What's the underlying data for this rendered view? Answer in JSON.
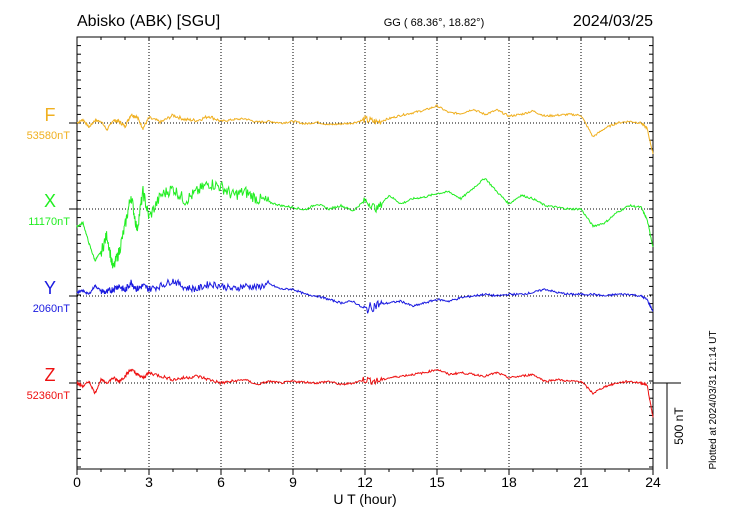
{
  "header": {
    "station": "Abisko (ABK)  [SGU]",
    "coords": "GG ( 68.36°,  18.82°)",
    "date": "2024/03/25"
  },
  "footer": {
    "plotted": "Plotted at 2024/03/31 21:14 UT"
  },
  "chart_data": {
    "type": "line",
    "title": "Abisko (ABK)  [SGU]",
    "xlabel": "U T (hour)",
    "ylabel": "",
    "xlim": [
      0,
      24
    ],
    "x_ticks": [
      0,
      3,
      6,
      9,
      12,
      15,
      18,
      21,
      24
    ],
    "x_tick_labels": [
      "0",
      "3",
      "6",
      "9",
      "12",
      "15",
      "18",
      "21",
      "24"
    ],
    "grid": "dotted vertical lines every 3 hours, dotted baseline per component",
    "scale_bar": {
      "label": "500 nT",
      "value_nT": 500
    },
    "series": [
      {
        "name": "F",
        "baseline_label": "53580nT",
        "baseline_nT": 53580,
        "color": "#f0b020",
        "x": [
          0,
          0.25,
          0.5,
          0.75,
          1,
          1.25,
          1.5,
          1.75,
          2,
          2.25,
          2.5,
          2.75,
          3,
          3.5,
          4,
          4.5,
          5,
          5.5,
          6,
          6.5,
          7,
          7.5,
          8,
          8.5,
          9,
          9.5,
          10,
          10.5,
          11,
          11.5,
          12,
          12.5,
          13,
          13.5,
          14,
          14.5,
          15,
          15.5,
          16,
          16.5,
          17,
          17.5,
          18,
          18.5,
          19,
          19.5,
          20,
          20.5,
          21,
          21.5,
          22,
          22.5,
          23,
          23.5,
          23.75,
          24
        ],
        "values": [
          0,
          20,
          -25,
          15,
          10,
          -40,
          15,
          10,
          -20,
          50,
          35,
          -30,
          30,
          5,
          45,
          20,
          15,
          40,
          10,
          20,
          25,
          5,
          10,
          0,
          10,
          -5,
          5,
          -10,
          -5,
          0,
          20,
          5,
          25,
          45,
          60,
          75,
          100,
          60,
          55,
          80,
          50,
          75,
          40,
          50,
          70,
          40,
          45,
          50,
          45,
          -80,
          -30,
          0,
          10,
          0,
          -30,
          -180
        ]
      },
      {
        "name": "X",
        "baseline_label": "11170nT",
        "baseline_nT": 11170,
        "color": "#22ee22",
        "x": [
          0,
          0.25,
          0.5,
          0.75,
          1,
          1.25,
          1.5,
          1.75,
          2,
          2.25,
          2.5,
          2.75,
          3,
          3.5,
          4,
          4.5,
          5,
          5.5,
          6,
          6.5,
          7,
          7.5,
          8,
          8.5,
          9,
          9.5,
          10,
          10.5,
          11,
          11.5,
          12,
          12.5,
          13,
          13.5,
          14,
          14.5,
          15,
          15.5,
          16,
          16.5,
          17,
          17.5,
          18,
          18.5,
          19,
          19.5,
          20,
          20.5,
          21,
          21.5,
          22,
          22.5,
          23,
          23.5,
          23.75,
          24
        ],
        "values": [
          -100,
          -80,
          -200,
          -300,
          -250,
          -150,
          -350,
          -250,
          -100,
          80,
          -120,
          100,
          -50,
          80,
          120,
          50,
          100,
          150,
          130,
          80,
          100,
          60,
          40,
          20,
          10,
          -5,
          30,
          0,
          20,
          -10,
          50,
          0,
          80,
          30,
          60,
          70,
          90,
          100,
          60,
          120,
          180,
          100,
          30,
          80,
          60,
          20,
          10,
          0,
          0,
          -100,
          -80,
          -20,
          20,
          10,
          -60,
          -220
        ]
      },
      {
        "name": "Y",
        "baseline_label": "2060nT",
        "baseline_nT": 2060,
        "color": "#1a1ae0",
        "x": [
          0,
          0.25,
          0.5,
          0.75,
          1,
          1.25,
          1.5,
          1.75,
          2,
          2.25,
          2.5,
          2.75,
          3,
          3.5,
          4,
          4.5,
          5,
          5.5,
          6,
          6.5,
          7,
          7.5,
          8,
          8.5,
          9,
          9.5,
          10,
          10.5,
          11,
          11.5,
          12,
          12.5,
          13,
          13.5,
          14,
          14.5,
          15,
          15.5,
          16,
          16.5,
          17,
          17.5,
          18,
          18.5,
          19,
          19.5,
          20,
          20.5,
          21,
          21.5,
          22,
          22.5,
          23,
          23.5,
          23.75,
          24
        ],
        "values": [
          20,
          30,
          10,
          60,
          30,
          20,
          40,
          60,
          30,
          80,
          40,
          60,
          40,
          60,
          90,
          50,
          40,
          70,
          60,
          40,
          60,
          50,
          70,
          40,
          40,
          10,
          0,
          -20,
          -40,
          -30,
          -80,
          -50,
          -40,
          -30,
          -60,
          -40,
          -20,
          -30,
          -10,
          0,
          10,
          0,
          10,
          10,
          20,
          40,
          20,
          10,
          10,
          10,
          0,
          10,
          10,
          0,
          -20,
          -90
        ]
      },
      {
        "name": "Z",
        "baseline_label": "52360nT",
        "baseline_nT": 52360,
        "color": "#ee1111",
        "x": [
          0,
          0.25,
          0.5,
          0.75,
          1,
          1.25,
          1.5,
          1.75,
          2,
          2.25,
          2.5,
          2.75,
          3,
          3.5,
          4,
          4.5,
          5,
          5.5,
          6,
          6.5,
          7,
          7.5,
          8,
          8.5,
          9,
          9.5,
          10,
          10.5,
          11,
          11.5,
          12,
          12.5,
          13,
          13.5,
          14,
          14.5,
          15,
          15.5,
          16,
          16.5,
          17,
          17.5,
          18,
          18.5,
          19,
          19.5,
          20,
          20.5,
          21,
          21.5,
          22,
          22.5,
          23,
          23.5,
          23.75,
          24
        ],
        "values": [
          0,
          -20,
          10,
          -60,
          20,
          0,
          30,
          10,
          40,
          80,
          50,
          30,
          60,
          40,
          20,
          30,
          40,
          20,
          0,
          10,
          20,
          -10,
          10,
          0,
          10,
          5,
          0,
          10,
          -10,
          0,
          20,
          10,
          30,
          40,
          50,
          60,
          80,
          50,
          60,
          50,
          40,
          60,
          30,
          40,
          50,
          10,
          20,
          10,
          10,
          -60,
          -20,
          0,
          10,
          0,
          -10,
          -200
        ]
      }
    ]
  }
}
